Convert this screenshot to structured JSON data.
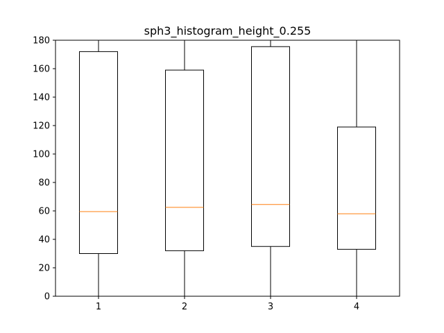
{
  "chart_data": {
    "type": "boxplot",
    "title": "sph3_histogram_height_0.255",
    "xlabel": "",
    "ylabel": "",
    "ylim": [
      0,
      180
    ],
    "yticks": [
      0,
      20,
      40,
      60,
      80,
      100,
      120,
      140,
      160,
      180
    ],
    "categories": [
      "1",
      "2",
      "3",
      "4"
    ],
    "boxes": [
      {
        "label": "1",
        "whisker_low": 0,
        "q1": 30,
        "median": 59.5,
        "q3": 172,
        "whisker_high": 180
      },
      {
        "label": "2",
        "whisker_low": 0,
        "q1": 32,
        "median": 62.5,
        "q3": 159,
        "whisker_high": 180
      },
      {
        "label": "3",
        "whisker_low": 0,
        "q1": 35,
        "median": 64.5,
        "q3": 175.5,
        "whisker_high": 180
      },
      {
        "label": "4",
        "whisker_low": 0,
        "q1": 33,
        "median": 58,
        "q3": 119,
        "whisker_high": 180
      }
    ],
    "grid": false,
    "colors": {
      "box": "#000000",
      "median": "#ff7f0e",
      "axes": "#000000"
    }
  }
}
